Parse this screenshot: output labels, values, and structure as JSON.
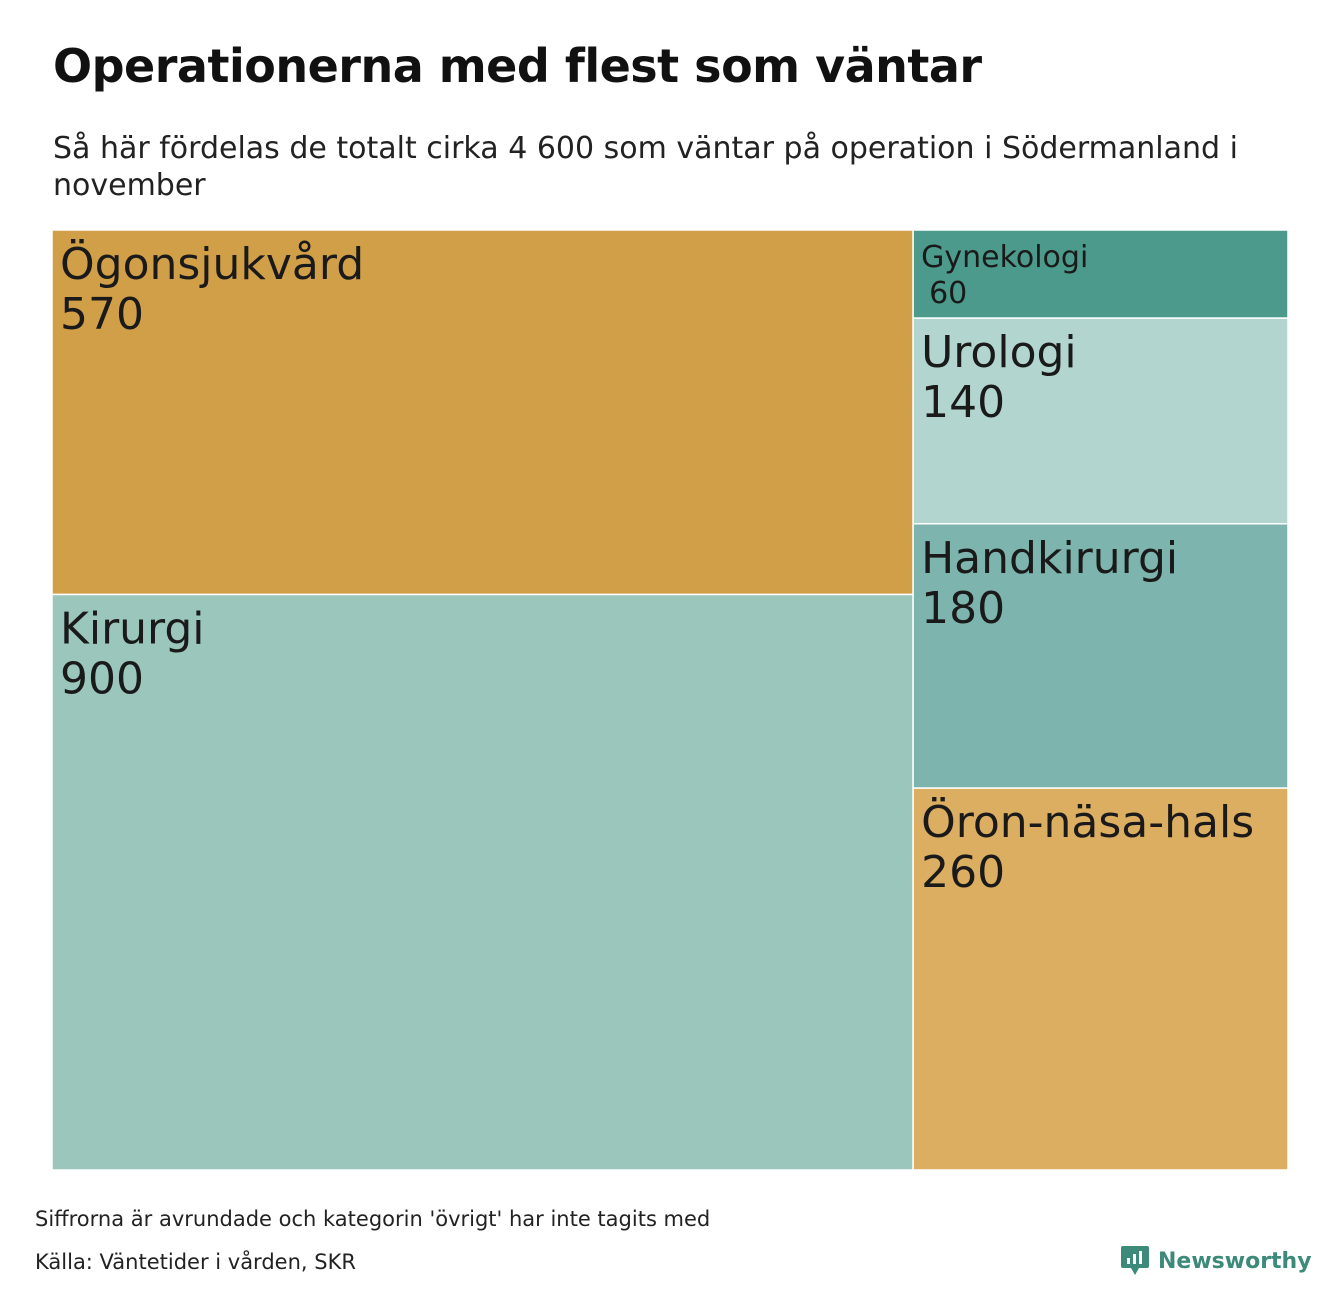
{
  "title": "Operationerna med flest som väntar",
  "subtitle": "Så här fördelas de totalt cirka 4 600 som väntar på operation i Södermanland i november",
  "footnote": "Siffrorna är avrundade och kategorin 'övrigt' har inte tagits med",
  "source": "Källa: Väntetider i vården, SKR",
  "brand": {
    "name": "Newsworthy",
    "icon": "newsworthy-logo-icon",
    "color": "#3d8a7b"
  },
  "chart_data": {
    "type": "treemap",
    "items": [
      {
        "name": "Ögonsjukvård",
        "value": 570,
        "label_value": "570",
        "color": "#d19f47"
      },
      {
        "name": "Kirurgi",
        "value": 900,
        "label_value": "900",
        "color": "#9ac6bb"
      },
      {
        "name": "Gynekologi",
        "value": 60,
        "label_value": "60",
        "color": "#4c9a8b"
      },
      {
        "name": "Urologi",
        "value": 140,
        "label_value": "140",
        "color": "#b3d5cf"
      },
      {
        "name": "Handkirurgi",
        "value": 180,
        "label_value": "180",
        "color": "#7db5ae"
      },
      {
        "name": "Öron-näsa-hals",
        "value": 260,
        "label_value": "260",
        "color": "#dbae62"
      }
    ]
  }
}
